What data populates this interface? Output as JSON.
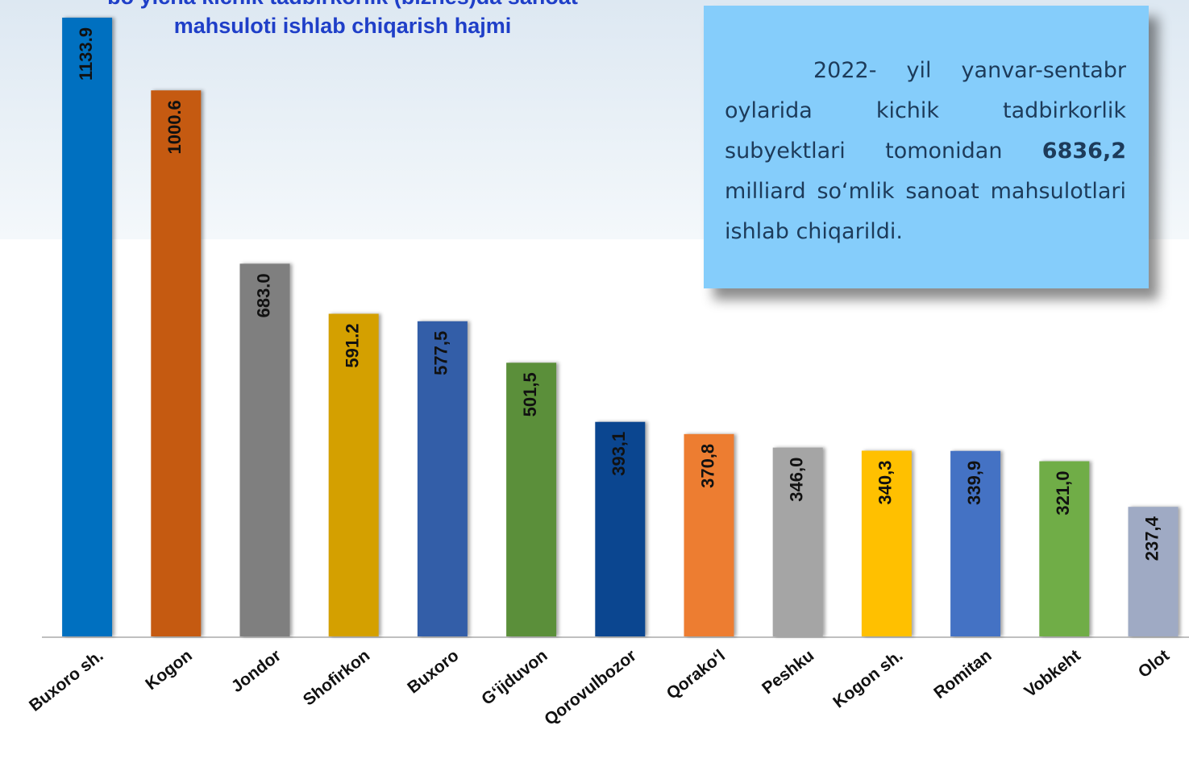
{
  "chart_data": {
    "type": "bar",
    "title": [
      "bo‘yicha kichik tadbirkorlik (biznes)da sanoat",
      "mahsuloti ishlab chiqarish hajmi"
    ],
    "categories": [
      "Buxoro sh.",
      "Kogon",
      "Jondor",
      "Shofirkon",
      "Buxoro",
      "G‘ijduvon",
      "Qorovulbozor",
      "Qorako‘l",
      "Peshku",
      "Kogon sh.",
      "Romitan",
      "Vobkeht",
      "Olot"
    ],
    "values": [
      1133.9,
      1000.6,
      683.0,
      591.2,
      577.5,
      501.5,
      393.1,
      370.8,
      346.0,
      340.3,
      339.9,
      321.0,
      237.4
    ],
    "value_labels": [
      "1133.9",
      "1000.6",
      "683.0",
      "591.2",
      "577,5",
      "501,5",
      "393,1",
      "370,8",
      "346,0",
      "340,3",
      "339,9",
      "321,0",
      "237,4"
    ],
    "colors": [
      "#0070c0",
      "#c55a11",
      "#7f7f7f",
      "#d4a000",
      "#335ea8",
      "#5b8f3a",
      "#0b4690",
      "#ed7d31",
      "#a5a5a5",
      "#ffc000",
      "#4472c4",
      "#70ad47",
      "#9faac4"
    ],
    "ylim": [
      0,
      1150
    ],
    "annotation": {
      "before": "2022- yil yanvar-sentabr oylarida kichik tadbirkorlik subyektlari tomonidan ",
      "highlight": "6836,2",
      "after": " milliard so‘mlik sanoat mahsulotlari ishlab chiqarildi."
    }
  }
}
